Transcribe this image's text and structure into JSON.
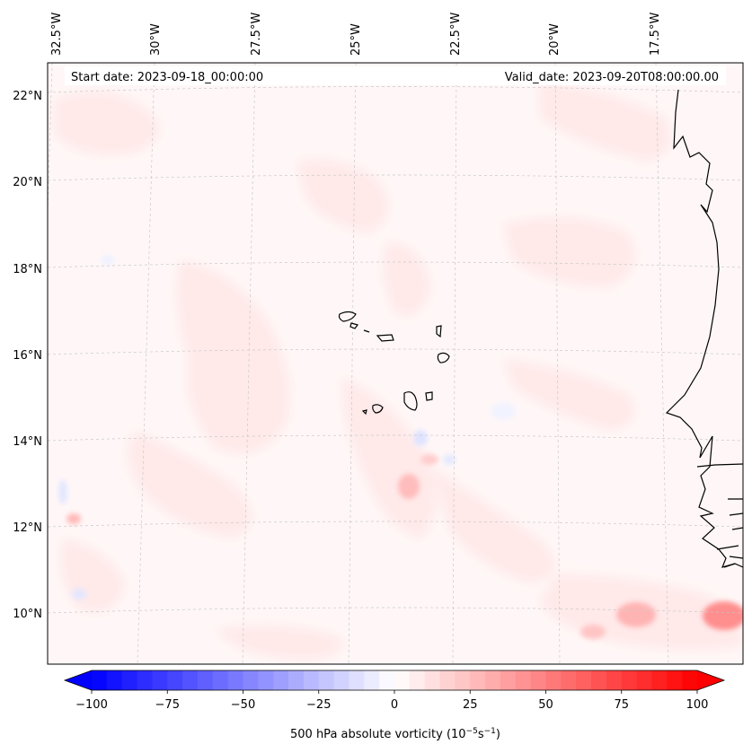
{
  "header": {
    "start_date": "Start date: 2023-09-18_00:00:00",
    "valid_date": "Valid_date: 2023-09-20T08:00:00.00"
  },
  "map": {
    "lon_labels": [
      "32.5°W",
      "30°W",
      "27.5°W",
      "25°W",
      "22.5°W",
      "20°W",
      "17.5°W"
    ],
    "lat_labels": [
      "22°N",
      "20°N",
      "18°N",
      "16°N",
      "14°N",
      "12°N",
      "10°N"
    ]
  },
  "colorbar": {
    "ticks": [
      "−100",
      "−75",
      "−50",
      "−25",
      "0",
      "25",
      "50",
      "75",
      "100"
    ],
    "vmin": -100,
    "vmax": 100,
    "levels": 40,
    "label_main": "500 hPa absolute vorticity (10",
    "label_exp1": "−5",
    "label_mid": "s",
    "label_exp2": "−1",
    "label_end": ")",
    "color_low": "#0000ff",
    "color_mid": "#ffffff",
    "color_high": "#ff0000"
  }
}
